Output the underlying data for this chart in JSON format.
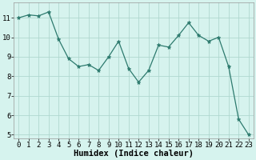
{
  "x": [
    0,
    1,
    2,
    3,
    4,
    5,
    6,
    7,
    8,
    9,
    10,
    11,
    12,
    13,
    14,
    15,
    16,
    17,
    18,
    19,
    20,
    21,
    22,
    23
  ],
  "y": [
    11.0,
    11.15,
    11.1,
    11.3,
    9.9,
    8.9,
    8.5,
    8.6,
    8.3,
    9.0,
    9.8,
    8.4,
    7.7,
    8.3,
    9.6,
    9.5,
    10.1,
    10.75,
    10.1,
    9.8,
    10.0,
    8.5,
    5.8,
    5.0
  ],
  "line_color": "#2d7a6e",
  "marker": "*",
  "marker_size": 3.5,
  "bg_color": "#d6f3ee",
  "grid_color": "#b0d8d0",
  "xlabel": "Humidex (Indice chaleur)",
  "ylim": [
    4.8,
    11.8
  ],
  "xlim": [
    -0.5,
    23.5
  ],
  "yticks": [
    5,
    6,
    7,
    8,
    9,
    10,
    11
  ],
  "xticks": [
    0,
    1,
    2,
    3,
    4,
    5,
    6,
    7,
    8,
    9,
    10,
    11,
    12,
    13,
    14,
    15,
    16,
    17,
    18,
    19,
    20,
    21,
    22,
    23
  ],
  "xlabel_fontsize": 7.5,
  "tick_fontsize": 6.5
}
